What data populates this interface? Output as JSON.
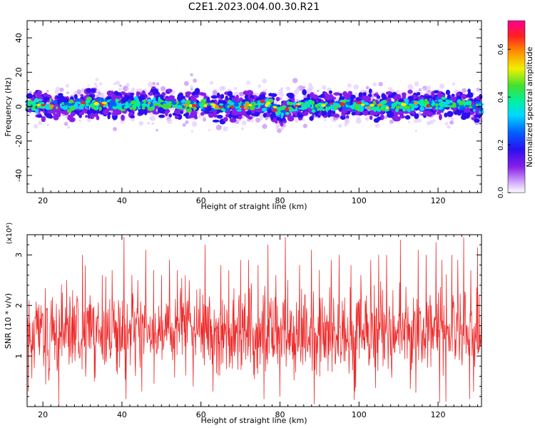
{
  "title": "C2E1.2023.004.00.30.R21",
  "colors": {
    "snr_line": "#ee2a2a",
    "axis": "#000000",
    "background": "#ffffff"
  },
  "chart_data": [
    {
      "type": "heatmap",
      "xlabel": "Height of straight line (km)",
      "ylabel": "Frequency (Hz)",
      "xlim": [
        16,
        131
      ],
      "ylim": [
        -50,
        50
      ],
      "x_ticks": [
        20,
        40,
        60,
        80,
        100,
        120
      ],
      "y_ticks": [
        -40,
        -20,
        0,
        20,
        40
      ],
      "grid": false,
      "colorbar": {
        "label": "Normalized spectral amplitude",
        "range": [
          0.0,
          0.72
        ],
        "ticks": [
          0.0,
          0.2,
          0.4,
          0.6
        ],
        "colormap": "rainbow (white-purple-blue-cyan-green-yellow-orange-red-magenta)"
      },
      "description_band": {
        "center_frequency_hz": [
          [
            16,
            0
          ],
          [
            20,
            1
          ],
          [
            25,
            0
          ],
          [
            30,
            1
          ],
          [
            35,
            2
          ],
          [
            40,
            1
          ],
          [
            45,
            2
          ],
          [
            50,
            2
          ],
          [
            55,
            1
          ],
          [
            60,
            1
          ],
          [
            65,
            0
          ],
          [
            70,
            0
          ],
          [
            75,
            2
          ],
          [
            78,
            0
          ],
          [
            80,
            -4
          ],
          [
            82,
            -1
          ],
          [
            85,
            1
          ],
          [
            90,
            0
          ],
          [
            95,
            1
          ],
          [
            100,
            1
          ],
          [
            105,
            0
          ],
          [
            110,
            0
          ],
          [
            115,
            1
          ],
          [
            120,
            2
          ],
          [
            125,
            1
          ],
          [
            131,
            0
          ]
        ],
        "half_width_hz": 8
      }
    },
    {
      "type": "line",
      "xlabel": "Height of straight line (km)",
      "ylabel": "SNR (10 * v/v)",
      "y_multiplier": "(x10⁴)",
      "xlim": [
        16,
        131
      ],
      "ylim": [
        0.0,
        3.4
      ],
      "x_ticks": [
        20,
        40,
        60,
        80,
        100,
        120
      ],
      "y_ticks": [
        1,
        2,
        3
      ],
      "grid": false,
      "series_stats": {
        "baseline": 1.45,
        "typical_low": 0.9,
        "typical_high": 2.0,
        "points": 1150
      },
      "peaks": [
        [
          16.5,
          2.1
        ],
        [
          18.5,
          1.9
        ],
        [
          19.5,
          2.0
        ],
        [
          21,
          1.9
        ],
        [
          26,
          2.5
        ],
        [
          27.5,
          2.3
        ],
        [
          30,
          3.0
        ],
        [
          33,
          2.6
        ],
        [
          35,
          2.6
        ],
        [
          37.5,
          2.7
        ],
        [
          40.5,
          3.35
        ],
        [
          42.5,
          2.6
        ],
        [
          44,
          2.5
        ],
        [
          46,
          3.1
        ],
        [
          48,
          2.7
        ],
        [
          50,
          2.6
        ],
        [
          52,
          2.9
        ],
        [
          54,
          2.7
        ],
        [
          56,
          2.6
        ],
        [
          58,
          2.7
        ],
        [
          61,
          3.2
        ],
        [
          63,
          2.6
        ],
        [
          65,
          2.8
        ],
        [
          67,
          2.7
        ],
        [
          70,
          2.9
        ],
        [
          72,
          2.9
        ],
        [
          74.5,
          2.8
        ],
        [
          77,
          3.2
        ],
        [
          79,
          2.6
        ],
        [
          82,
          2.5
        ],
        [
          85,
          2.8
        ],
        [
          88,
          3.1
        ],
        [
          90,
          2.7
        ],
        [
          93,
          2.9
        ],
        [
          95,
          3.0
        ],
        [
          98,
          2.8
        ],
        [
          100.5,
          2.6
        ],
        [
          103,
          2.9
        ],
        [
          105,
          3.0
        ],
        [
          107,
          3.0
        ],
        [
          110.5,
          3.3
        ],
        [
          113,
          2.8
        ],
        [
          115,
          3.1
        ],
        [
          117,
          3.0
        ],
        [
          119.5,
          3.25
        ],
        [
          121,
          2.9
        ],
        [
          123.5,
          3.0
        ],
        [
          125,
          2.9
        ],
        [
          126.5,
          3.35
        ],
        [
          128,
          3.1
        ],
        [
          130,
          3.15
        ]
      ],
      "troughs": [
        [
          16.3,
          0.3
        ],
        [
          33,
          0.5
        ],
        [
          41,
          0.15
        ],
        [
          45,
          0.3
        ],
        [
          58,
          0.4
        ],
        [
          63,
          0.3
        ],
        [
          76,
          0.15
        ],
        [
          80,
          0.2
        ],
        [
          99,
          0.3
        ],
        [
          113,
          0.35
        ],
        [
          122,
          0.1
        ],
        [
          128,
          0.15
        ]
      ]
    }
  ]
}
